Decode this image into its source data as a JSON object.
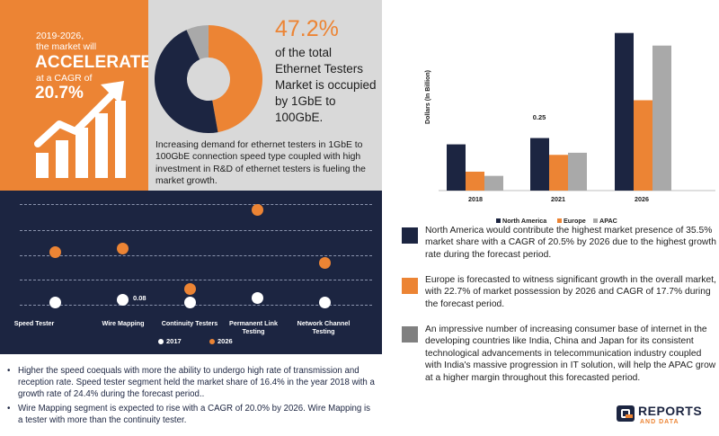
{
  "headline": {
    "period_text": "2019-2026,",
    "market_will": "the market will",
    "accelerate": "ACCELERATE",
    "cagr_prefix": "at a CAGR of",
    "cagr_value": "20.7%"
  },
  "share": {
    "percent": "47.2%",
    "description": "of the total Ethernet Testers Market is occupied by 1GbE to 100GbE.",
    "donut_fraction": 0.472,
    "note": "Increasing demand for ethernet testers in 1GbE to 100GbE connection speed type coupled with high investment in R&D of ethernet testers is fueling the market growth."
  },
  "colors": {
    "navy": "#1c2541",
    "orange": "#ec8434",
    "grey": "#a9a9a9",
    "white": "#ffffff"
  },
  "dot_chart": {
    "categories": [
      "Speed Tester",
      "Wire Mapping",
      "Continuity Testers",
      "Permanent Link Testing",
      "Network Channel Testing"
    ],
    "annotation": "0.08",
    "legend": [
      "2017",
      "2026"
    ]
  },
  "bullets": [
    "Higher the speed coequals with more the ability to undergo high rate of transmission and reception rate. Speed tester segment held the market share of 16.4% in the year 2018 with a growth rate of 24.4% during the forecast period..",
    "Wire Mapping segment is expected to rise with a CAGR of 20.0% by 2026. Wire Mapping is a tester with more than the continuity tester."
  ],
  "chart_data": [
    {
      "type": "scatter",
      "categories": [
        "Speed Tester",
        "Wire Mapping",
        "Continuity Testers",
        "Permanent Link Testing",
        "Network Channel Testing"
      ],
      "series": [
        {
          "name": "2017",
          "values": [
            0.06,
            0.08,
            0.055,
            0.09,
            0.06
          ]
        },
        {
          "name": "2026",
          "values": [
            0.44,
            0.47,
            0.16,
            0.76,
            0.36
          ]
        }
      ],
      "annotations": [
        "0.08"
      ],
      "legend": "bottom",
      "ylim": [
        0,
        0.8
      ]
    },
    {
      "type": "bar",
      "categories": [
        "2018",
        "2021",
        "2026"
      ],
      "series": [
        {
          "name": "North America",
          "values": [
            0.22,
            0.25,
            0.75
          ]
        },
        {
          "name": "Europe",
          "values": [
            0.09,
            0.17,
            0.43
          ]
        },
        {
          "name": "APAC",
          "values": [
            0.07,
            0.18,
            0.69
          ]
        }
      ],
      "annotations": [
        "0.25"
      ],
      "ylabel": "Dollars (In Billion)",
      "ylim": [
        0,
        0.8
      ],
      "legend": "bottom",
      "grid": false
    }
  ],
  "region_notes": [
    "North America would contribute the highest market presence of 35.5% market share with a CAGR of 20.5% by 2026 due to the highest growth rate during the forecast period.",
    "Europe is forecasted to witness significant growth in the overall market, with 22.7% of market possession by 2026 and CAGR of 17.7% during the forecast period.",
    "An impressive number of increasing consumer base of internet in the developing countries like India, China and Japan for its consistent technological advancements in telecommunication industry coupled with India's massive progression in IT solution, will help the APAC grow at a higher margin throughout this forecasted period."
  ],
  "brand": {
    "name": "REPORTS",
    "sub": "AND DATA"
  }
}
